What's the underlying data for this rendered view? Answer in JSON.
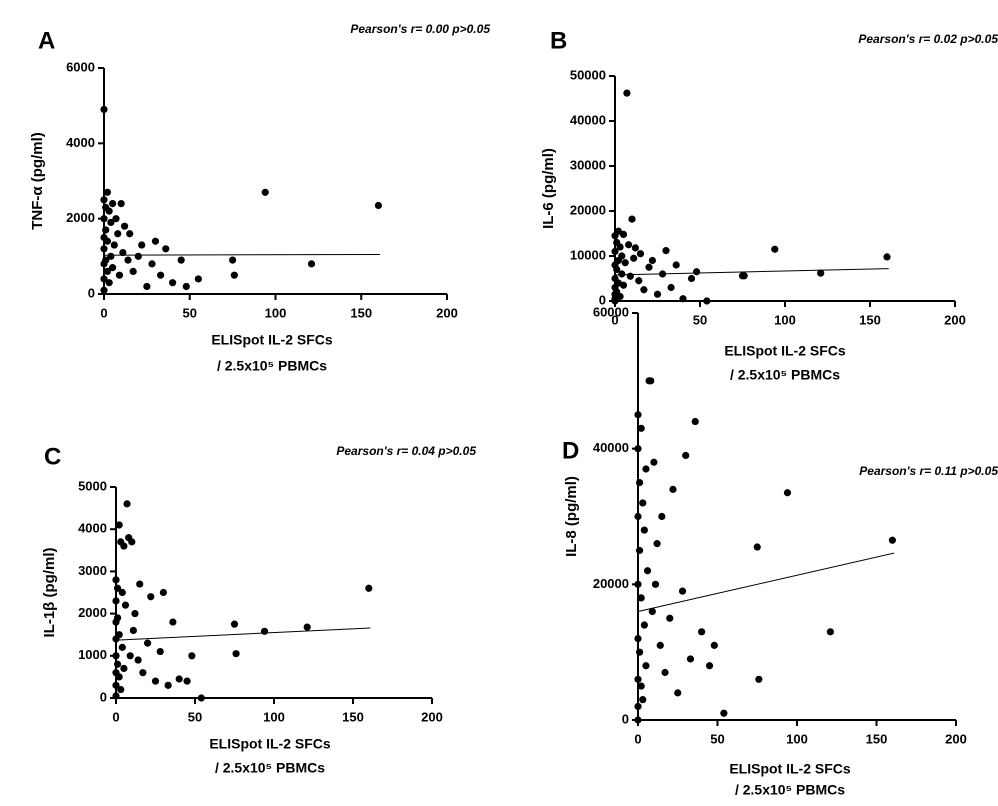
{
  "chart_data": [
    {
      "type": "scatter",
      "panel_label": "A",
      "annotation": "Pearson's r= 0.00  p>0.05",
      "y_label": "TNF-α (pg/ml)",
      "x_label": [
        "ELISpot IL-2 SFCs",
        "/ 2.5x10⁵ PBMCs"
      ],
      "xlim": [
        0,
        200
      ],
      "xticks": [
        0,
        50,
        100,
        150,
        200
      ],
      "ylim": [
        0,
        6000
      ],
      "yticks": [
        0,
        2000,
        4000,
        6000
      ],
      "color": "#000000",
      "series": [
        {
          "x": [
            0,
            0,
            0,
            0,
            0,
            0,
            0,
            0,
            1,
            1,
            1,
            2,
            2,
            2,
            3,
            3,
            4,
            4,
            5,
            5,
            6,
            7,
            8,
            9,
            10,
            11,
            12,
            14,
            15,
            17,
            20,
            22,
            25,
            28,
            30,
            33,
            36,
            40,
            45,
            48,
            55,
            75,
            76,
            94,
            121,
            160
          ],
          "values": [
            4900,
            2500,
            2000,
            1500,
            1200,
            800,
            400,
            100,
            2300,
            1700,
            900,
            2700,
            1400,
            600,
            2200,
            300,
            1900,
            1000,
            2400,
            700,
            1300,
            2000,
            1600,
            500,
            2400,
            1100,
            1800,
            900,
            1600,
            600,
            1000,
            1300,
            200,
            800,
            1400,
            500,
            1200,
            300,
            900,
            200,
            400,
            900,
            500,
            2700,
            800,
            2350
          ]
        }
      ],
      "trend": {
        "x": [
          0,
          161
        ],
        "values": [
          1030,
          1050
        ]
      }
    },
    {
      "type": "scatter",
      "panel_label": "B",
      "annotation": "Pearson's r= 0.02  p>0.05",
      "y_label": "IL-6 (pg/ml)",
      "x_label": [
        "ELISpot IL-2 SFCs",
        "/ 2.5x10⁵ PBMCs"
      ],
      "xlim": [
        0,
        200
      ],
      "xticks": [
        0,
        50,
        100,
        150,
        200
      ],
      "ylim": [
        0,
        50000
      ],
      "yticks": [
        0,
        10000,
        20000,
        30000,
        40000,
        50000
      ],
      "color": "#000000",
      "series": [
        {
          "x": [
            0,
            0,
            0,
            0,
            0,
            0,
            0,
            0,
            1,
            1,
            1,
            2,
            2,
            2,
            3,
            3,
            4,
            4,
            5,
            5,
            6,
            7,
            8,
            9,
            10,
            11,
            12,
            14,
            15,
            17,
            20,
            22,
            25,
            28,
            30,
            33,
            36,
            40,
            45,
            48,
            54,
            75,
            76,
            94,
            121,
            160
          ],
          "values": [
            14500,
            11000,
            8000,
            5000,
            3000,
            1500,
            500,
            0,
            13000,
            7000,
            2000,
            15500,
            9000,
            4000,
            12000,
            1000,
            10000,
            6000,
            14800,
            3500,
            8500,
            46200,
            12500,
            5500,
            18200,
            9500,
            11800,
            4500,
            10500,
            2500,
            7500,
            9000,
            1500,
            6000,
            11200,
            3000,
            8000,
            500,
            5000,
            6500,
            0,
            5600,
            5600,
            11500,
            6200,
            9800
          ]
        }
      ],
      "trend": {
        "x": [
          0,
          161
        ],
        "values": [
          5800,
          7200
        ]
      }
    },
    {
      "type": "scatter",
      "panel_label": "C",
      "annotation": "Pearson's r= 0.04  p>0.05",
      "y_label": "IL-1β (pg/ml)",
      "x_label": [
        "ELISpot IL-2 SFCs",
        "/ 2.5x10⁵ PBMCs"
      ],
      "xlim": [
        0,
        200
      ],
      "xticks": [
        0,
        50,
        100,
        150,
        200
      ],
      "ylim": [
        0,
        5000
      ],
      "yticks": [
        0,
        1000,
        2000,
        3000,
        4000,
        5000
      ],
      "color": "#000000",
      "series": [
        {
          "x": [
            0,
            0,
            0,
            0,
            0,
            0,
            0,
            0,
            1,
            1,
            1,
            2,
            2,
            2,
            3,
            3,
            4,
            4,
            5,
            5,
            6,
            7,
            8,
            9,
            10,
            11,
            12,
            14,
            15,
            17,
            20,
            22,
            25,
            28,
            30,
            33,
            36,
            40,
            45,
            48,
            54,
            75,
            76,
            94,
            121,
            160
          ],
          "values": [
            2800,
            2300,
            1800,
            1400,
            1000,
            600,
            300,
            50,
            2600,
            1900,
            800,
            4100,
            1500,
            500,
            3700,
            200,
            2500,
            1200,
            3600,
            700,
            2200,
            4600,
            3800,
            1000,
            3700,
            1600,
            2000,
            900,
            2700,
            600,
            1300,
            2400,
            400,
            1100,
            2500,
            300,
            1800,
            450,
            400,
            1000,
            0,
            1750,
            1050,
            1580,
            1680,
            2600
          ]
        }
      ],
      "trend": {
        "x": [
          0,
          161
        ],
        "values": [
          1370,
          1660
        ]
      }
    },
    {
      "type": "scatter",
      "panel_label": "D",
      "annotation": "Pearson's r= 0.11  p>0.05",
      "y_label": "IL-8 (pg/ml)",
      "x_label": [
        "ELISpot IL-2 SFCs",
        "/ 2.5x10⁵ PBMCs"
      ],
      "xlim": [
        0,
        200
      ],
      "xticks": [
        0,
        50,
        100,
        150,
        200
      ],
      "ylim": [
        0,
        60000
      ],
      "yticks": [
        0,
        20000,
        40000,
        60000
      ],
      "color": "#000000",
      "series": [
        {
          "x": [
            0,
            0,
            0,
            0,
            0,
            0,
            0,
            0,
            1,
            1,
            1,
            2,
            2,
            2,
            3,
            3,
            4,
            4,
            5,
            5,
            6,
            7,
            8,
            9,
            10,
            11,
            12,
            14,
            15,
            17,
            20,
            22,
            25,
            28,
            30,
            33,
            36,
            40,
            45,
            48,
            54,
            75,
            76,
            94,
            121,
            160
          ],
          "values": [
            45000,
            40000,
            30000,
            20000,
            12000,
            6000,
            2000,
            0,
            35000,
            25000,
            10000,
            43000,
            18000,
            5000,
            32000,
            3000,
            28000,
            14000,
            37000,
            8000,
            22000,
            50000,
            50000,
            16000,
            38000,
            20000,
            26000,
            11000,
            30000,
            7000,
            15000,
            34000,
            4000,
            19000,
            39000,
            9000,
            44000,
            13000,
            8000,
            11000,
            1000,
            25500,
            6000,
            33500,
            13000,
            26500
          ]
        }
      ],
      "trend": {
        "x": [
          0,
          161
        ],
        "values": [
          16000,
          24600
        ]
      }
    }
  ]
}
